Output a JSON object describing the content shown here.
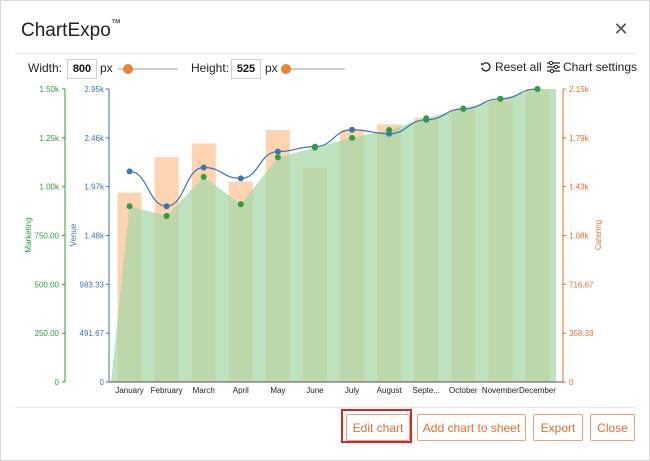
{
  "dialog": {
    "title": "ChartExpo",
    "trademark": "™",
    "close_icon": "close-icon"
  },
  "controls": {
    "width_label": "Width:",
    "width_value": "800",
    "width_unit": "px",
    "width_slider_fraction": 0.16,
    "height_label": "Height:",
    "height_value": "525",
    "height_unit": "px",
    "height_slider_fraction": 0.05,
    "reset_label": "Reset all",
    "reset_icon": "reset-icon",
    "settings_label": "Chart settings",
    "settings_icon": "sliders-icon"
  },
  "buttons": {
    "edit_chart": "Edit chart",
    "add_chart": "Add chart to sheet",
    "export": "Export",
    "close": "Close"
  },
  "chart_data": {
    "type": "bar",
    "categories": [
      "January",
      "February",
      "March",
      "April",
      "May",
      "June",
      "July",
      "August",
      "Septe...",
      "October",
      "November",
      "December"
    ],
    "axes": {
      "left_outer": {
        "label": "Marketing",
        "ticks": [
          "0",
          "250.00",
          "500.00",
          "750.00",
          "1.00k",
          "1.25k",
          "1.50k"
        ],
        "range": [
          0,
          1500
        ],
        "color": "#2e9e3f"
      },
      "left_inner": {
        "label": "Venue",
        "ticks": [
          "0",
          "491.67",
          "983.33",
          "1.48k",
          "1.97k",
          "2.46k",
          "2.95k"
        ],
        "range": [
          0,
          2950
        ],
        "color": "#3a76b0"
      },
      "right": {
        "label": "Catering",
        "ticks": [
          "0",
          "358.33",
          "716.67",
          "1.08k",
          "1.43k",
          "1.79k",
          "2.15k"
        ],
        "range": [
          0,
          2150
        ],
        "color": "#e0702f"
      }
    },
    "series": [
      {
        "name": "Catering",
        "type": "bar",
        "axis": "right",
        "color": "#fdd3b0",
        "values": [
          1390,
          1650,
          1750,
          1470,
          1850,
          1570,
          1850,
          1890,
          1940,
          2000,
          2060,
          2150
        ]
      },
      {
        "name": "Marketing",
        "type": "area",
        "axis": "left_outer",
        "color": "#a8d8a8",
        "values": [
          900,
          850,
          1050,
          910,
          1150,
          1200,
          1250,
          1290,
          1350,
          1400,
          1450,
          1500
        ]
      },
      {
        "name": "Venue",
        "type": "line",
        "axis": "left_inner",
        "color": "#3a76b0",
        "values": [
          2120,
          1770,
          2160,
          2050,
          2320,
          2370,
          2540,
          2500,
          2640,
          2750,
          2850,
          2950
        ]
      }
    ],
    "grid": false,
    "legend": "none"
  }
}
